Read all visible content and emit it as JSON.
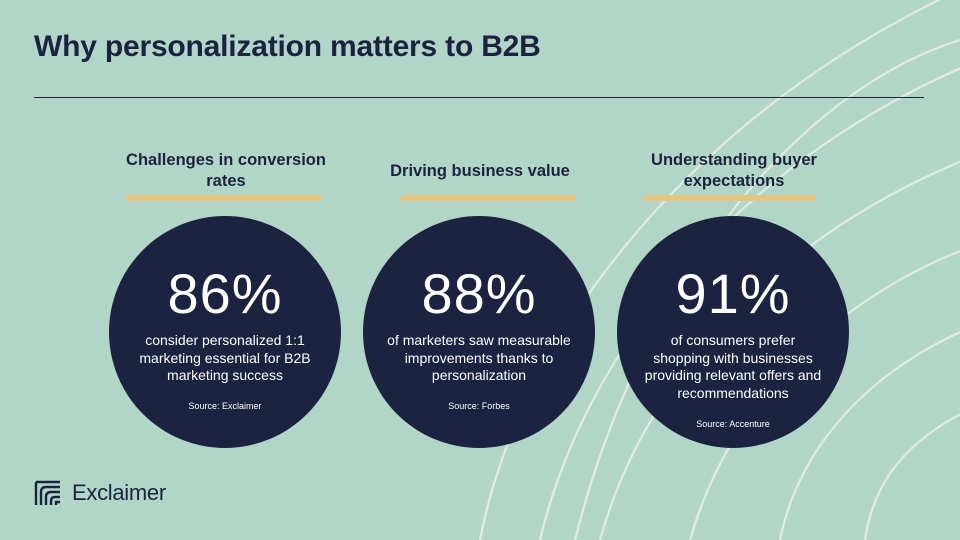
{
  "page": {
    "title": "Why personalization matters to B2B"
  },
  "stats": [
    {
      "heading": "Challenges in conversion rates",
      "value": "86%",
      "description": "consider personalized 1:1 marketing essential for B2B marketing success",
      "source": "Source: Exclaimer"
    },
    {
      "heading": "Driving business value",
      "value": "88%",
      "description": "of marketers saw measurable improvements thanks to personalization",
      "source": "Source: Forbes"
    },
    {
      "heading": "Understanding buyer expectations",
      "value": "91%",
      "description": "of consumers prefer shopping with businesses providing relevant offers and recommendations",
      "source": "Source: Accenture"
    }
  ],
  "brand": {
    "name": "Exclaimer",
    "logo_icon": "exclaimer-logo-icon"
  },
  "colors": {
    "background": "#b1d6c7",
    "navy": "#1c2340",
    "highlight": "#e8c47c",
    "arc": "#e9f0e9"
  }
}
